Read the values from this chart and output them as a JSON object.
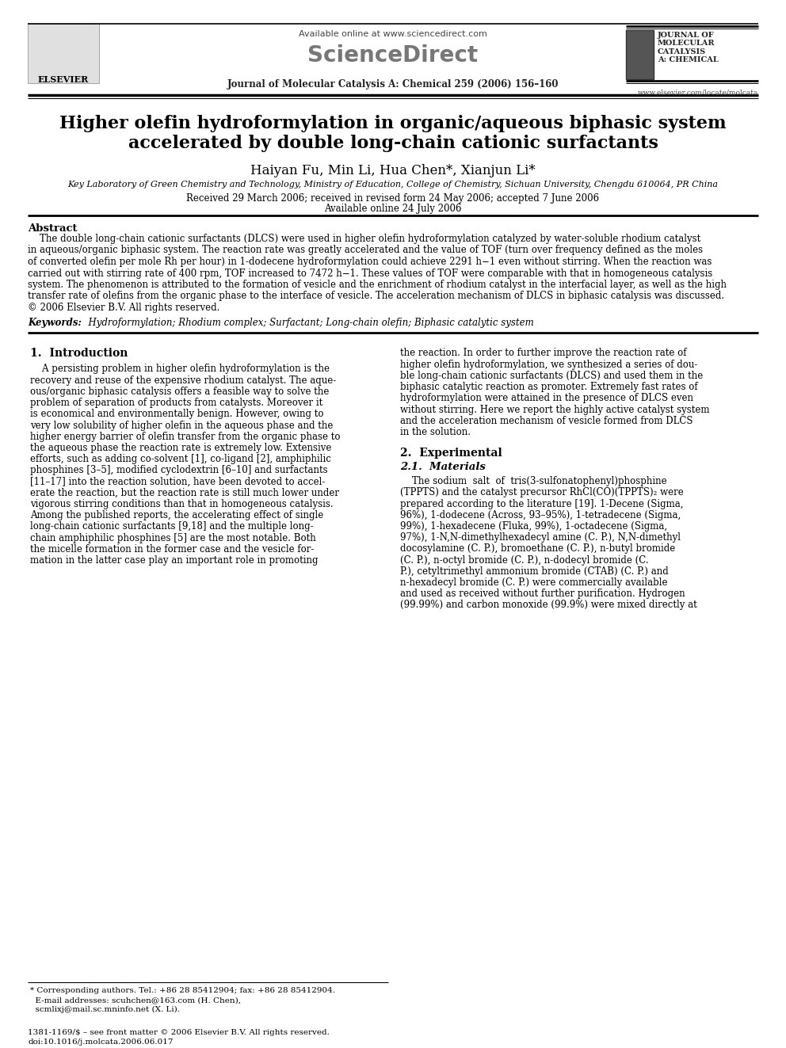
{
  "background_color": "#ffffff",
  "page_width": 9.92,
  "page_height": 13.23,
  "dpi": 100,
  "available_online": "Available online at www.sciencedirect.com",
  "journal_name": "Journal of Molecular Catalysis A: Chemical 259 (2006) 156–160",
  "website": "www.elsevier.com/locate/molcata",
  "journal_label": "JOURNAL OF\nMOLECULAR\nCATALYSIS\nA: CHEMICAL",
  "sciencedirect": "ScienceDirect",
  "elsevier": "ELSEVIER",
  "title_line1": "Higher olefin hydroformylation in organic/aqueous biphasic system",
  "title_line2": "accelerated by double long-chain cationic surfactants",
  "authors": "Haiyan Fu, Min Li, Hua Chen*, Xianjun Li*",
  "affiliation": "Key Laboratory of Green Chemistry and Technology, Ministry of Education, College of Chemistry, Sichuan University, Chengdu 610064, PR China",
  "dates_line1": "Received 29 March 2006; received in revised form 24 May 2006; accepted 7 June 2006",
  "dates_line2": "Available online 24 July 2006",
  "abstract_label": "Abstract",
  "abstract_body": "    The double long-chain cationic surfactants (DLCS) were used in higher olefin hydroformylation catalyzed by water-soluble rhodium catalyst\nin aqueous/organic biphasic system. The reaction rate was greatly accelerated and the value of TOF (turn over frequency defined as the moles\nof converted olefin per mole Rh per hour) in 1-dodecene hydroformylation could achieve 2291 h−1 even without stirring. When the reaction was\ncarried out with stirring rate of 400 rpm, TOF increased to 7472 h−1. These values of TOF were comparable with that in homogeneous catalysis\nsystem. The phenomenon is attributed to the formation of vesicle and the enrichment of rhodium catalyst in the interfacial layer, as well as the high\ntransfer rate of olefins from the organic phase to the interface of vesicle. The acceleration mechanism of DLCS in biphasic catalysis was discussed.\n© 2006 Elsevier B.V. All rights reserved.",
  "keywords_label": "Keywords:",
  "keywords_text": "  Hydroformylation; Rhodium complex; Surfactant; Long-chain olefin; Biphasic catalytic system",
  "sec1_heading": "1.  Introduction",
  "sec1_col1_lines": [
    "    A persisting problem in higher olefin hydroformylation is the",
    "recovery and reuse of the expensive rhodium catalyst. The aque-",
    "ous/organic biphasic catalysis offers a feasible way to solve the",
    "problem of separation of products from catalysts. Moreover it",
    "is economical and environmentally benign. However, owing to",
    "very low solubility of higher olefin in the aqueous phase and the",
    "higher energy barrier of olefin transfer from the organic phase to",
    "the aqueous phase the reaction rate is extremely low. Extensive",
    "efforts, such as adding co-solvent [1], co-ligand [2], amphiphilic",
    "phosphines [3–5], modified cyclodextrin [6–10] and surfactants",
    "[11–17] into the reaction solution, have been devoted to accel-",
    "erate the reaction, but the reaction rate is still much lower under",
    "vigorous stirring conditions than that in homogeneous catalysis.",
    "Among the published reports, the accelerating effect of single",
    "long-chain cationic surfactants [9,18] and the multiple long-",
    "chain amphiphilic phosphines [5] are the most notable. Both",
    "the micelle formation in the former case and the vesicle for-",
    "mation in the latter case play an important role in promoting"
  ],
  "sec1_col2_lines": [
    "the reaction. In order to further improve the reaction rate of",
    "higher olefin hydroformylation, we synthesized a series of dou-",
    "ble long-chain cationic surfactants (DLCS) and used them in the",
    "biphasic catalytic reaction as promoter. Extremely fast rates of",
    "hydroformylation were attained in the presence of DLCS even",
    "without stirring. Here we report the highly active catalyst system",
    "and the acceleration mechanism of vesicle formed from DLCS",
    "in the solution."
  ],
  "sec2_heading": "2.  Experimental",
  "sec21_heading": "2.1.  Materials",
  "sec2_col2_lines": [
    "    The sodium  salt  of  tris(3-sulfonatophenyl)phosphine",
    "(TPPTS) and the catalyst precursor RhCl(CO)(TPPTS)₂ were",
    "prepared according to the literature [19]. 1-Decene (Sigma,",
    "96%), 1-dodecene (Across, 93–95%), 1-tetradecene (Sigma,",
    "99%), 1-hexadecene (Fluka, 99%), 1-octadecene (Sigma,",
    "97%), 1-N,N-dimethylhexadecyl amine (C. P.), N,N-dimethyl",
    "docosylamine (C. P.), bromoethane (C. P.), n-butyl bromide",
    "(C. P.), n-octyl bromide (C. P.), n-dodecyl bromide (C.",
    "P.), cetyltrimethyl ammonium bromide (CTAB) (C. P.) and",
    "n-hexadecyl bromide (C. P.) were commercially available",
    "and used as received without further purification. Hydrogen",
    "(99.99%) and carbon monoxide (99.9%) were mixed directly at"
  ],
  "footnote_line1": "* Corresponding authors. Tel.: +86 28 85412904; fax: +86 28 85412904.",
  "footnote_line2": "  E-mail addresses: scuhchen@163.com (H. Chen),",
  "footnote_line3": "  scmlixj@mail.sc.mninfo.net (X. Li).",
  "footer_line1": "1381-1169/$ – see front matter © 2006 Elsevier B.V. All rights reserved.",
  "footer_line2": "doi:10.1016/j.molcata.2006.06.017"
}
